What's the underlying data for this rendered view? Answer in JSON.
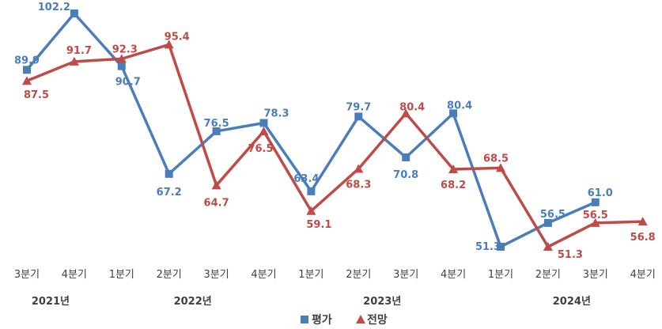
{
  "chart_data": {
    "type": "line",
    "categories": [
      "3분기",
      "4분기",
      "1분기",
      "2분기",
      "3분기",
      "4분기",
      "1분기",
      "2분기",
      "3분기",
      "4분기",
      "1분기",
      "2분기",
      "3분기",
      "4분기"
    ],
    "years": [
      {
        "label": "2021년",
        "span": [
          0,
          1
        ]
      },
      {
        "label": "2022년",
        "span": [
          2,
          5
        ]
      },
      {
        "label": "2023년",
        "span": [
          6,
          9
        ]
      },
      {
        "label": "2024년",
        "span": [
          10,
          13
        ]
      }
    ],
    "series": [
      {
        "name": "평가",
        "color": "#4A7EBB",
        "marker": "square",
        "values": [
          89.9,
          102.2,
          90.7,
          67.2,
          76.5,
          78.3,
          63.4,
          79.7,
          70.8,
          80.4,
          51.3,
          56.5,
          61.0,
          null
        ],
        "labels": [
          "89.9",
          "102.2",
          "90.7",
          "67.2",
          "76.5",
          "78.3",
          "63.4",
          "79.7",
          "70.8",
          "80.4",
          "51.3",
          "56.5",
          "61.0",
          null
        ]
      },
      {
        "name": "전망",
        "color": "#BE4B48",
        "marker": "triangle",
        "values": [
          87.5,
          91.7,
          92.3,
          95.4,
          64.7,
          76.5,
          59.1,
          68.3,
          80.4,
          68.2,
          68.5,
          51.3,
          56.5,
          56.8
        ],
        "labels": [
          "87.5",
          "91.7",
          "92.3",
          "95.4",
          "64.7",
          "76.5",
          "59.1",
          "68.3",
          "80.4",
          "68.2",
          "68.5",
          "51.3",
          "56.5",
          "56.8"
        ]
      }
    ],
    "grid": false,
    "legend_position": "bottom"
  }
}
